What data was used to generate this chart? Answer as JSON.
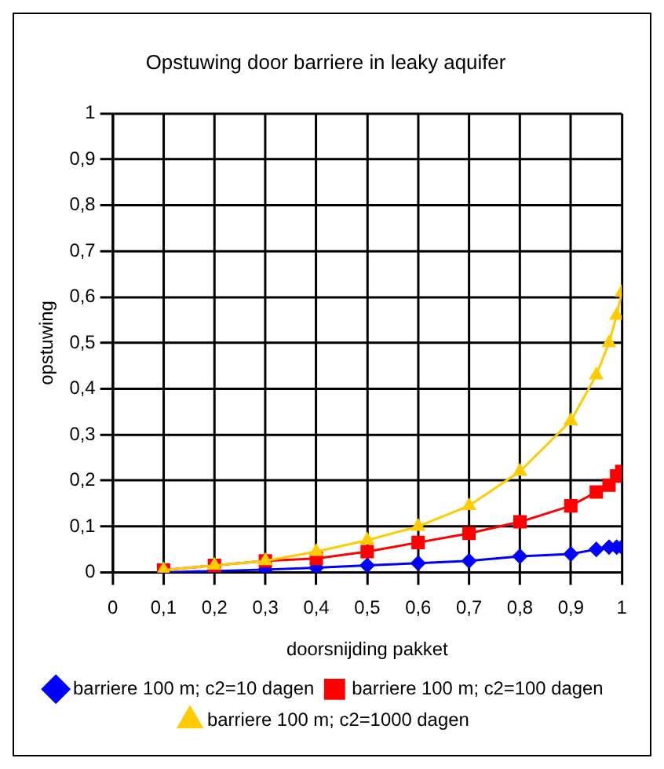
{
  "chart_data": {
    "type": "line",
    "title": "Opstuwing door barriere in leaky aquifer",
    "xlabel": "doorsnijding pakket",
    "ylabel": "opstuwing",
    "x": [
      0.1,
      0.2,
      0.3,
      0.4,
      0.5,
      0.6,
      0.7,
      0.8,
      0.9,
      0.95,
      0.975,
      0.99,
      1.0
    ],
    "series": [
      {
        "name": "barriere 100 m; c2=10 dagen",
        "color": "#0000ff",
        "marker": "diamond",
        "values": [
          0,
          0.003,
          0.006,
          0.01,
          0.015,
          0.02,
          0.025,
          0.035,
          0.04,
          0.05,
          0.055,
          0.055,
          0.055
        ]
      },
      {
        "name": "barriere 100 m; c2=100 dagen",
        "color": "#ff0000",
        "marker": "square",
        "values": [
          0.005,
          0.015,
          0.025,
          0.03,
          0.045,
          0.065,
          0.085,
          0.11,
          0.145,
          0.175,
          0.19,
          0.21,
          0.22
        ]
      },
      {
        "name": "barriere 100 m; c2=1000 dagen",
        "color": "#ffcc00",
        "marker": "triangle",
        "values": [
          0.005,
          0.015,
          0.025,
          0.045,
          0.07,
          0.1,
          0.145,
          0.22,
          0.33,
          0.43,
          0.5,
          0.56,
          0.61
        ]
      }
    ],
    "xlim": [
      0,
      1
    ],
    "xticks": [
      0,
      {
        "value": 0.1,
        "label": "0,1"
      },
      {
        "value": 0.2,
        "label": "0,2"
      },
      {
        "value": 0.3,
        "label": "0,3"
      },
      {
        "value": 0.4,
        "label": "0,4"
      },
      {
        "value": 0.5,
        "label": "0,5"
      },
      {
        "value": 0.6,
        "label": "0,6"
      },
      {
        "value": 0.7,
        "label": "0,7"
      },
      {
        "value": 0.8,
        "label": "0,8"
      },
      {
        "value": 0.9,
        "label": "0,9"
      },
      1
    ],
    "ylim": [
      0,
      1
    ],
    "yticks": [
      0,
      {
        "value": 0.1,
        "label": "0,1"
      },
      {
        "value": 0.2,
        "label": "0,2"
      },
      {
        "value": 0.3,
        "label": "0,3"
      },
      {
        "value": 0.4,
        "label": "0,4"
      },
      {
        "value": 0.5,
        "label": "0,5"
      },
      {
        "value": 0.6,
        "label": "0,6"
      },
      {
        "value": 0.7,
        "label": "0,7"
      },
      {
        "value": 0.8,
        "label": "0,8"
      },
      {
        "value": 0.9,
        "label": "0,9"
      },
      1
    ],
    "grid": true,
    "legend": "bottom",
    "line_style": "solid"
  }
}
